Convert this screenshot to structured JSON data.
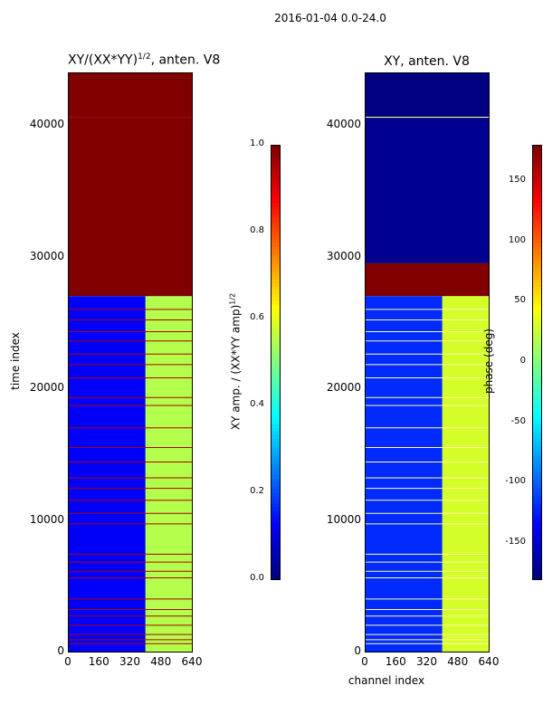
{
  "suptitle": "2016-01-04 0.0-24.0",
  "chart_data": [
    {
      "type": "heatmap",
      "title": "XY/(XX*YY)^1/2, anten. V8",
      "title_main": "XY/(XX*YY)",
      "title_exp": "1/2",
      "title_rest": ", anten. V8",
      "xlabel": "",
      "ylabel": "time index",
      "xlim": [
        0,
        640
      ],
      "ylim": [
        0,
        44000
      ],
      "xticks": [
        "0",
        "160",
        "320",
        "480",
        "640"
      ],
      "yticks": [
        "0",
        "10000",
        "20000",
        "30000",
        "40000"
      ],
      "colorbar": {
        "label": "XY amp. / (XX*YY amp)^1/2",
        "label_main": "XY amp. / (XX*YY amp)",
        "label_exp": "1/2",
        "range": [
          0.0,
          1.0
        ],
        "ticks": [
          "0.0",
          "0.2",
          "0.4",
          "0.6",
          "0.8",
          "1.0"
        ],
        "colormap": "jet"
      },
      "regions": [
        {
          "x": [
            0,
            640
          ],
          "y": [
            27000,
            44000
          ],
          "value": 1.0
        },
        {
          "x": [
            0,
            640
          ],
          "y": [
            0,
            27000
          ],
          "value": 0.12
        },
        {
          "x": [
            400,
            640
          ],
          "y": [
            0,
            27000
          ],
          "value": 0.55
        }
      ],
      "flagged_rows_y": [
        600,
        900,
        1300,
        2000,
        2700,
        3200,
        4000,
        5600,
        6100,
        6800,
        7400,
        9700,
        10500,
        11500,
        12400,
        13200,
        14400,
        15500,
        17000,
        18700,
        19300,
        20800,
        21800,
        22600,
        23600,
        24300,
        25200,
        26000,
        40600
      ]
    },
    {
      "type": "heatmap",
      "title": "XY, anten. V8",
      "xlabel": "channel index",
      "ylabel": "",
      "xlim": [
        0,
        640
      ],
      "ylim": [
        0,
        44000
      ],
      "xticks": [
        "0",
        "160",
        "320",
        "480",
        "640"
      ],
      "yticks": [
        "0",
        "10000",
        "20000",
        "30000",
        "40000"
      ],
      "colorbar": {
        "label": "phase (deg)",
        "range": [
          -180,
          180
        ],
        "ticks": [
          "-150",
          "-100",
          "-50",
          "0",
          "50",
          "100",
          "150"
        ],
        "colormap": "jet"
      },
      "regions": [
        {
          "x": [
            0,
            640
          ],
          "y": [
            40500,
            44000
          ],
          "value": -180
        },
        {
          "x": [
            0,
            640
          ],
          "y": [
            29500,
            40500
          ],
          "value": -175
        },
        {
          "x": [
            0,
            640
          ],
          "y": [
            27000,
            29500
          ],
          "value": 180
        },
        {
          "x": [
            0,
            640
          ],
          "y": [
            0,
            27000
          ],
          "value": -120
        },
        {
          "x": [
            400,
            640
          ],
          "y": [
            0,
            27000
          ],
          "value": 30
        }
      ],
      "flagged_rows_y": [
        600,
        900,
        1300,
        2000,
        2700,
        3200,
        4000,
        5600,
        6100,
        6800,
        7400,
        9700,
        10500,
        11500,
        12400,
        13200,
        14400,
        15500,
        17000,
        18700,
        19300,
        20800,
        21800,
        22600,
        23600,
        24300,
        25200,
        26000,
        40600
      ]
    }
  ]
}
